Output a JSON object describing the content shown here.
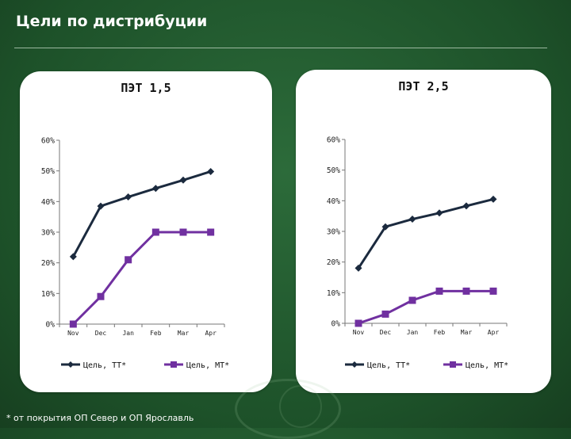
{
  "header": {
    "title": "Цели по дистрибуции"
  },
  "footnote": "* от покрытия ОП Север и ОП Ярославль",
  "colors": {
    "background": "#1f5a2e",
    "series_tt": "#1b2a3e",
    "series_mt": "#7030a0"
  },
  "chart_data": [
    {
      "type": "line",
      "title": "ПЭТ 1,5",
      "categories": [
        "Nov",
        "Dec",
        "Jan",
        "Feb",
        "Mar",
        "Apr"
      ],
      "y_ticks": [
        "0%",
        "10%",
        "20%",
        "30%",
        "40%",
        "50%",
        "60%"
      ],
      "ylim": [
        0,
        60
      ],
      "legend": "bottom",
      "series": [
        {
          "name": "Цель, ТТ*",
          "marker": "diamond",
          "values": [
            22,
            38.5,
            41.5,
            44.3,
            47,
            49.8
          ]
        },
        {
          "name": "Цель, МТ*",
          "marker": "square",
          "values": [
            0,
            9,
            21,
            30,
            30,
            30
          ]
        }
      ]
    },
    {
      "type": "line",
      "title": "ПЭТ 2,5",
      "categories": [
        "Nov",
        "Dec",
        "Jan",
        "Feb",
        "Mar",
        "Apr"
      ],
      "y_ticks": [
        "0%",
        "10%",
        "20%",
        "30%",
        "40%",
        "50%",
        "60%"
      ],
      "ylim": [
        0,
        60
      ],
      "legend": "bottom",
      "series": [
        {
          "name": "Цель, ТТ*",
          "marker": "diamond",
          "values": [
            18,
            31.5,
            34,
            36,
            38.3,
            40.5
          ]
        },
        {
          "name": "Цель, МТ*",
          "marker": "square",
          "values": [
            0,
            3,
            7.5,
            10.5,
            10.5,
            10.5
          ]
        }
      ]
    }
  ]
}
